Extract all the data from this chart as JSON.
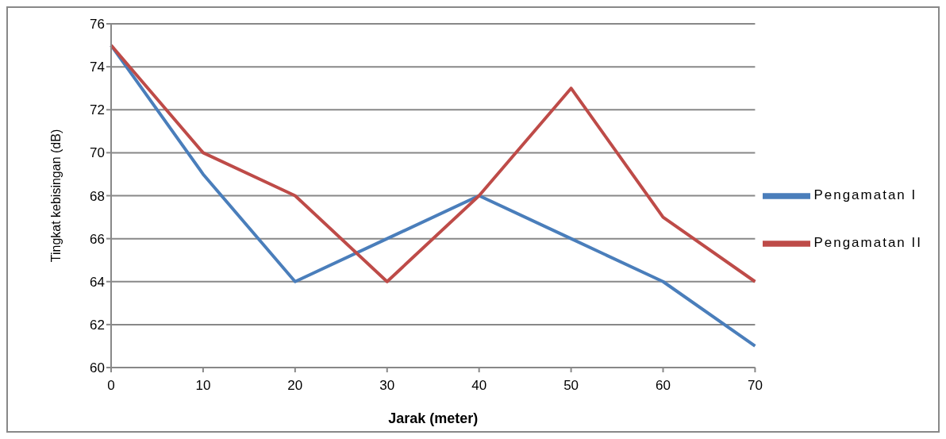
{
  "chart_data": {
    "type": "line",
    "xlabel": "Jarak (meter)",
    "ylabel": "Tingkat kebisingan (dB)",
    "categories": [
      "0",
      "10",
      "20",
      "30",
      "40",
      "50",
      "60",
      "70"
    ],
    "series": [
      {
        "name": "Pengamatan I",
        "color": "#4a7ebb",
        "values": [
          75,
          69,
          64,
          66,
          68,
          66,
          64,
          61
        ]
      },
      {
        "name": "Pengamatan II",
        "color": "#be4b48",
        "values": [
          75,
          70,
          68,
          64,
          68,
          73,
          67,
          64
        ]
      }
    ],
    "ylim": [
      60,
      76
    ],
    "yticks": [
      60,
      62,
      64,
      66,
      68,
      70,
      72,
      74,
      76
    ],
    "grid": "y",
    "legend": "right",
    "marker": "none",
    "line_style": "solid"
  }
}
